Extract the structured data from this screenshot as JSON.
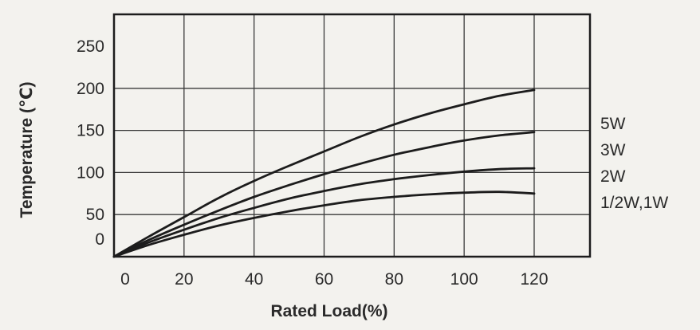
{
  "chart_data": {
    "type": "line",
    "title": "",
    "xlabel": "Rated Load(%)",
    "ylabel": "Temperature (℃)",
    "xlim": [
      0,
      120
    ],
    "ylim": [
      0,
      250
    ],
    "x_gridlines": [
      0,
      20,
      40,
      60,
      80,
      100,
      120
    ],
    "y_gridlines": [
      0,
      50,
      100,
      150,
      200
    ],
    "x_ticks": [
      "0",
      "20",
      "40",
      "60",
      "80",
      "100",
      "120"
    ],
    "y_ticks": [
      "0",
      "50",
      "100",
      "150",
      "200",
      "250"
    ],
    "grid": true,
    "legend_position": "right",
    "series": [
      {
        "name": "5W",
        "color": "#1c1c1c",
        "x": [
          0,
          10,
          20,
          30,
          40,
          50,
          60,
          70,
          80,
          90,
          100,
          110,
          120
        ],
        "y": [
          0,
          24,
          47,
          70,
          90,
          108,
          125,
          142,
          157,
          170,
          181,
          191,
          198
        ]
      },
      {
        "name": "3W",
        "color": "#1c1c1c",
        "x": [
          0,
          10,
          20,
          30,
          40,
          50,
          60,
          70,
          80,
          90,
          100,
          110,
          120
        ],
        "y": [
          0,
          20,
          38,
          55,
          71,
          85,
          98,
          110,
          121,
          130,
          138,
          144,
          148
        ]
      },
      {
        "name": "2W",
        "color": "#1c1c1c",
        "x": [
          0,
          10,
          20,
          30,
          40,
          50,
          60,
          70,
          80,
          90,
          100,
          110,
          120
        ],
        "y": [
          0,
          17,
          32,
          46,
          58,
          69,
          78,
          86,
          92,
          97,
          101,
          104,
          105
        ]
      },
      {
        "name": "1/2W,1W",
        "color": "#1c1c1c",
        "x": [
          0,
          10,
          20,
          30,
          40,
          50,
          60,
          70,
          80,
          90,
          100,
          110,
          120
        ],
        "y": [
          0,
          14,
          26,
          37,
          46,
          54,
          61,
          67,
          71,
          74,
          76,
          77,
          75
        ]
      }
    ]
  }
}
